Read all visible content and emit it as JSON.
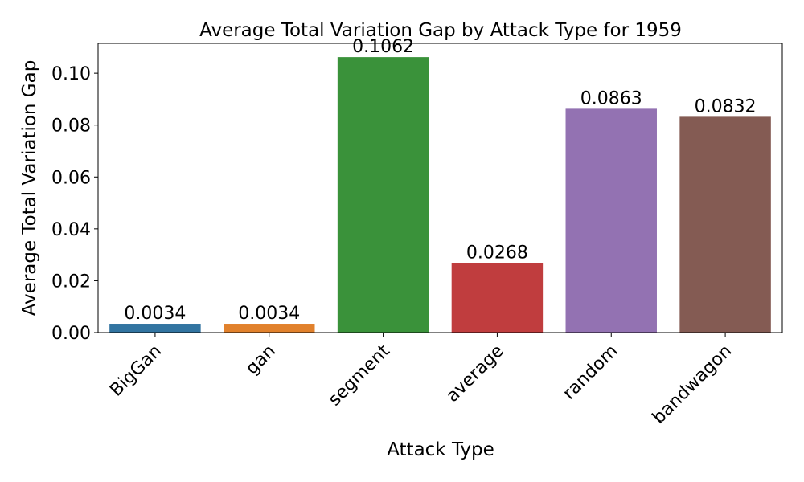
{
  "chart_data": {
    "type": "bar",
    "title": "Average Total Variation Gap by Attack Type for 1959",
    "xlabel": "Attack Type",
    "ylabel": "Average Total Variation Gap",
    "categories": [
      "BigGan",
      "gan",
      "segment",
      "average",
      "random",
      "bandwagon"
    ],
    "values": [
      0.0034,
      0.0034,
      0.1062,
      0.0268,
      0.0863,
      0.0832
    ],
    "data_labels": [
      "0.0034",
      "0.0034",
      "0.1062",
      "0.0268",
      "0.0863",
      "0.0832"
    ],
    "colors": [
      "#3274a1",
      "#e1812c",
      "#3a923a",
      "#c03d3e",
      "#9372b2",
      "#845b53"
    ],
    "ylim": [
      0,
      0.1115
    ],
    "yticks": [
      0.0,
      0.02,
      0.04,
      0.06,
      0.08,
      0.1
    ],
    "ytick_labels": [
      "0.00",
      "0.02",
      "0.04",
      "0.06",
      "0.08",
      "0.10"
    ],
    "grid": false,
    "legend": "none"
  }
}
